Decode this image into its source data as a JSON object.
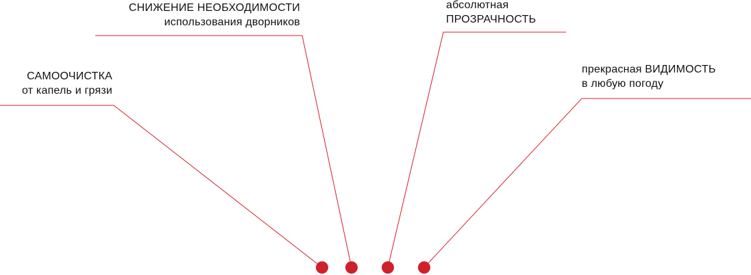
{
  "accent_color": "#d0202a",
  "callouts": [
    {
      "id": "self-cleaning",
      "line1": "САМООЧИСТКА",
      "line2": "от капель и грязи"
    },
    {
      "id": "wiper-reduction",
      "line1": "СНИЖЕНИЕ НЕОБХОДИМОСТИ",
      "line2": "использования дворников"
    },
    {
      "id": "transparency",
      "line1": "абсолютная",
      "line2": "ПРОЗРАЧНОСТЬ"
    },
    {
      "id": "visibility",
      "line1": "прекрасная ВИДИМОСТЬ",
      "line2": "в любую погоду"
    }
  ]
}
